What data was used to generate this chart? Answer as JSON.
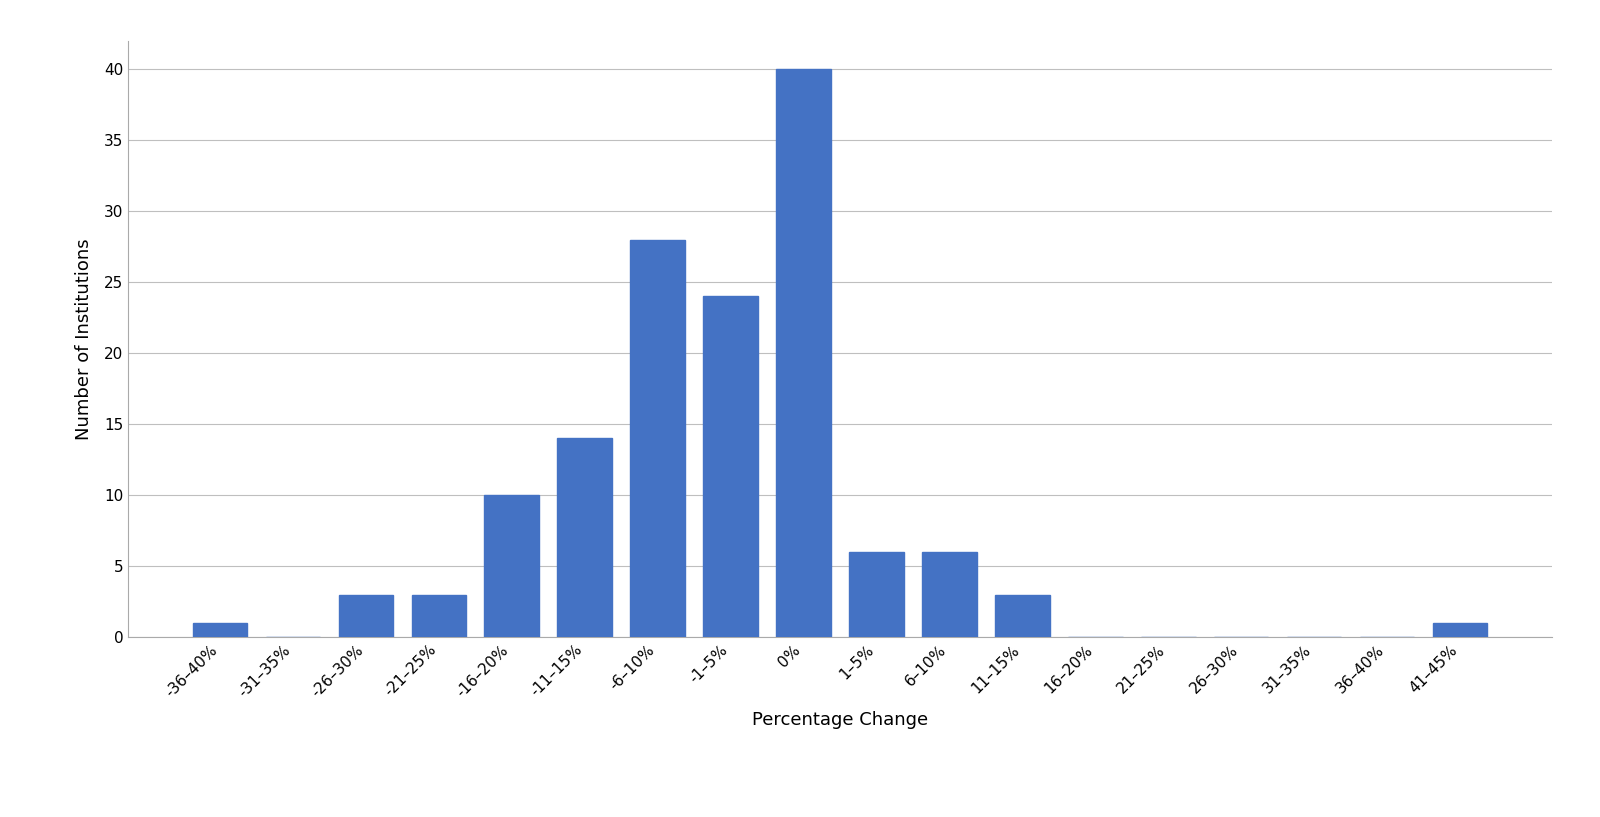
{
  "categories": [
    "-36–40%",
    "-31–35%",
    "-26–30%",
    "-21–25%",
    "-16–20%",
    "-11–15%",
    "-6–10%",
    "-1–5%",
    "0%",
    "1–5%",
    "6–10%",
    "11–15%",
    "16–20%",
    "21–25%",
    "26–30%",
    "31–35%",
    "36–40%",
    "41–45%"
  ],
  "values": [
    1,
    0,
    3,
    3,
    10,
    14,
    28,
    24,
    40,
    6,
    6,
    3,
    0,
    0,
    0,
    0,
    0,
    1
  ],
  "bar_color": "#4472C4",
  "xlabel": "Percentage Change",
  "ylabel": "Number of Institutions",
  "ylim": [
    0,
    42
  ],
  "yticks": [
    0,
    5,
    10,
    15,
    20,
    25,
    30,
    35,
    40
  ],
  "bg_color": "#ffffff",
  "grid_color": "#bfbfbf",
  "xlabel_fontsize": 13,
  "ylabel_fontsize": 13,
  "tick_fontsize": 11,
  "bar_width": 0.75
}
